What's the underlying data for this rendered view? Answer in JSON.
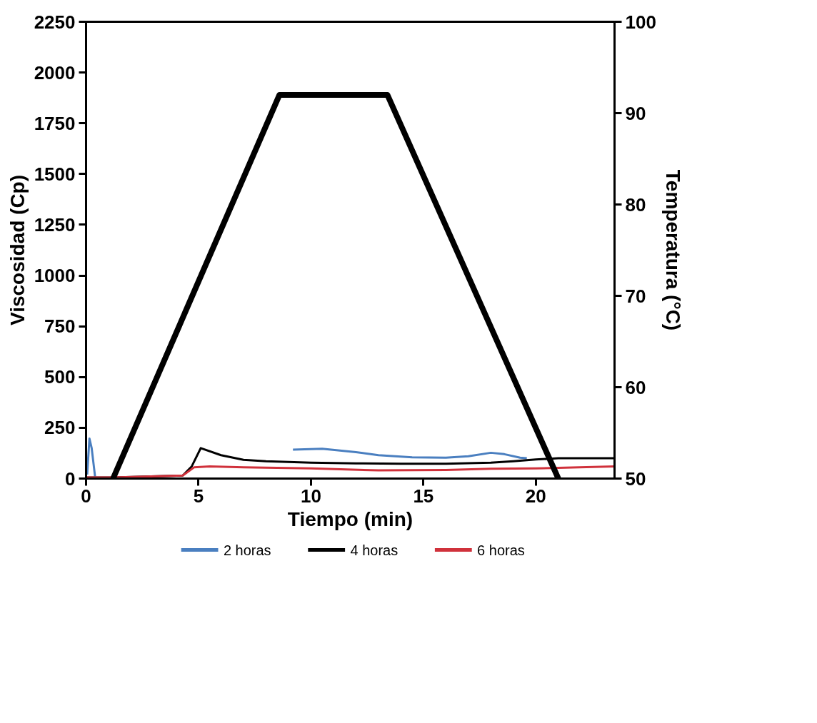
{
  "chart_data": {
    "type": "line",
    "xlabel": "Tiempo (min)",
    "ylabel": "Viscosidad (Cp)",
    "y2label": "Temperatura (°C)",
    "xlim": [
      0,
      23.5
    ],
    "xticks": [
      0,
      5,
      10,
      15,
      20
    ],
    "ylim": [
      0,
      2250
    ],
    "yticks": [
      0,
      250,
      500,
      750,
      1000,
      1250,
      1500,
      1750,
      2000,
      2250
    ],
    "y2lim": [
      50,
      100
    ],
    "y2ticks": [
      50,
      60,
      70,
      80,
      90,
      100
    ],
    "grid": false,
    "legend": "bottom",
    "marker": "none",
    "line_style": "solid",
    "series": [
      {
        "name": "2 horas",
        "color": "#4a7fc0",
        "x": [
          0.05,
          0.15,
          0.25,
          0.4,
          1.0,
          9.2,
          10.5,
          12,
          13,
          14.5,
          16,
          17,
          18,
          18.6,
          19.3,
          19.6
        ],
        "values": [
          20,
          197,
          150,
          10,
          null,
          142,
          147,
          130,
          115,
          105,
          103,
          110,
          127,
          120,
          103,
          100
        ]
      },
      {
        "name": "4 horas",
        "color": "#000000",
        "x": [
          0,
          1.2,
          4.3,
          4.7,
          5.1,
          6,
          7,
          8,
          10,
          12,
          14,
          16,
          18,
          19,
          20,
          21,
          23.5
        ],
        "values": [
          5,
          5,
          15,
          60,
          150,
          115,
          92,
          85,
          78,
          75,
          73,
          73,
          78,
          85,
          94,
          100,
          100
        ]
      },
      {
        "name": "6 horas",
        "color": "#d0313b",
        "x": [
          0,
          1.2,
          4.3,
          4.8,
          5.5,
          7,
          10,
          13,
          16,
          18,
          20,
          23.5
        ],
        "values": [
          5,
          5,
          15,
          55,
          60,
          55,
          50,
          40,
          42,
          48,
          50,
          60
        ]
      },
      {
        "color": "#000000",
        "axis": "y2",
        "x": [
          1.2,
          8.6,
          13.4,
          21.0
        ],
        "values": [
          50,
          92,
          92,
          50
        ]
      }
    ]
  }
}
